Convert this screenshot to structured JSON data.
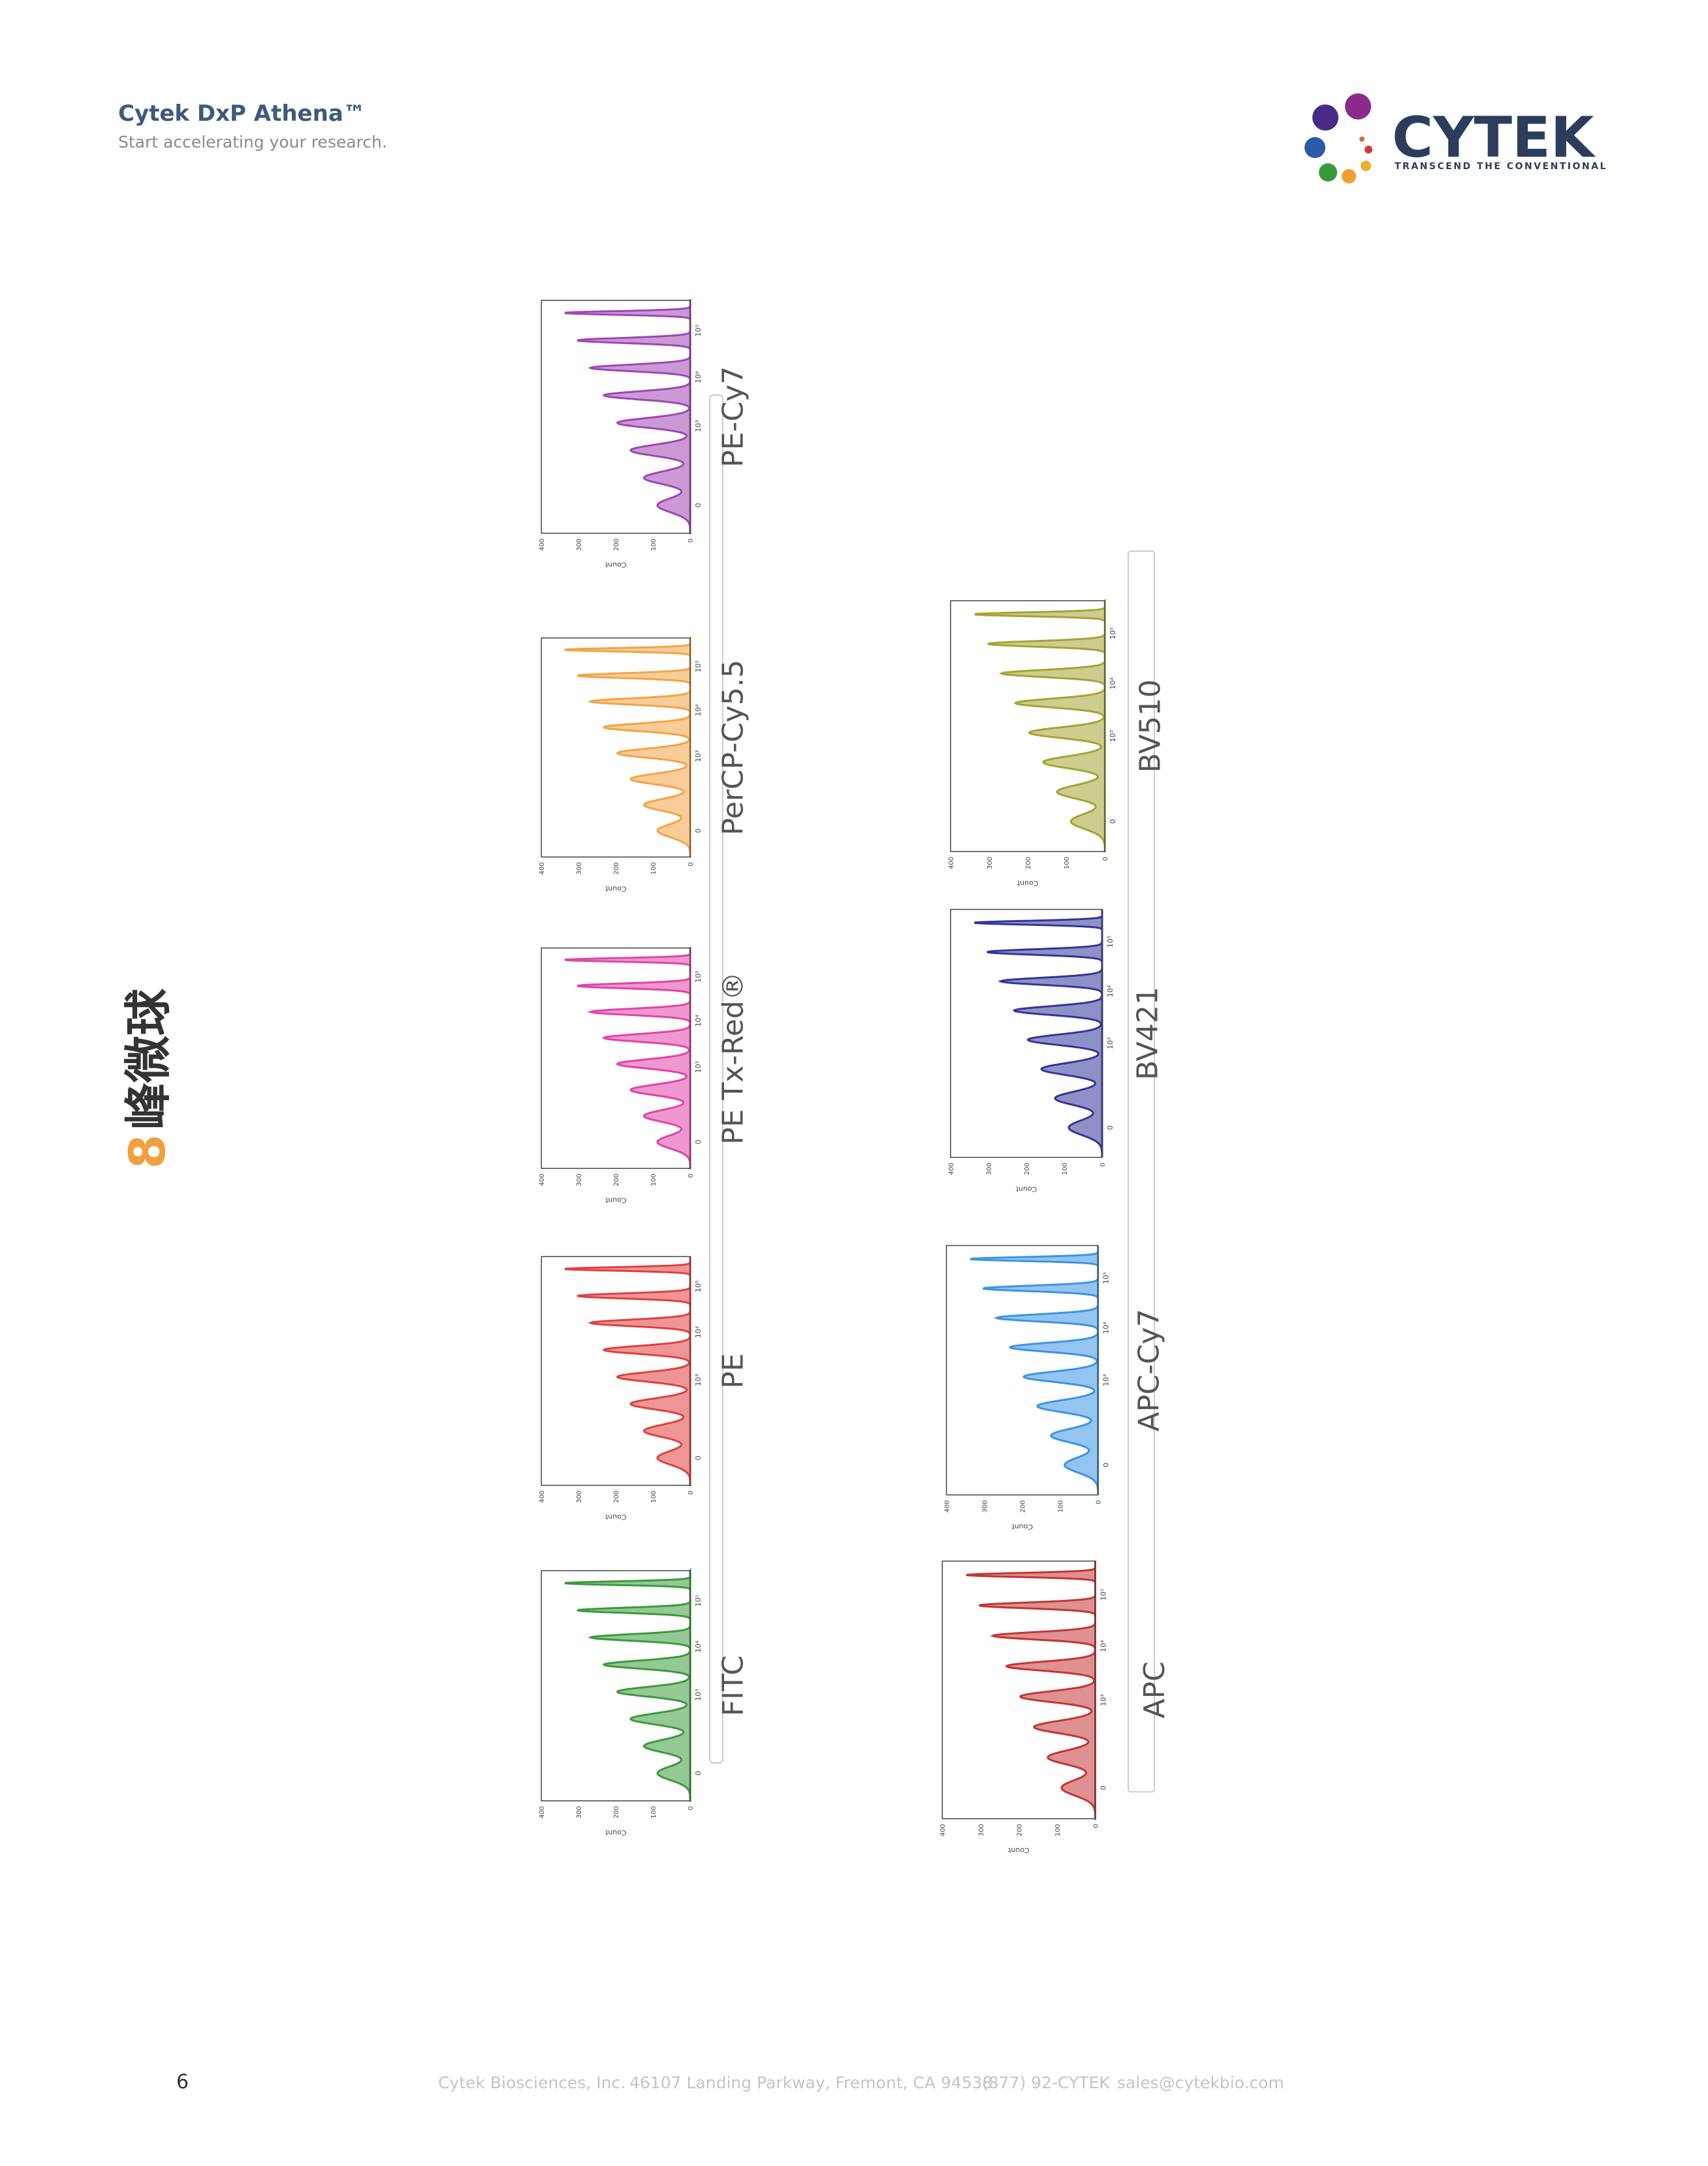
{
  "header": {
    "title": "Cytek DxP Athena™",
    "subtitle": "Start accelerating your research."
  },
  "logo": {
    "name": "CYTEK",
    "tagline": "TRANSCEND THE CONVENTIONAL"
  },
  "section_title": {
    "number": "8",
    "text": "峰微球"
  },
  "axis": {
    "y_label": "Count",
    "y_ticks": [
      "400",
      "300",
      "200",
      "100",
      "0"
    ],
    "x_ticks": [
      "0",
      "10³",
      "10⁴",
      "10⁵"
    ]
  },
  "panels": [
    {
      "label": "FITC",
      "color": "#3c9a3c"
    },
    {
      "label": "PE",
      "color": "#e04040"
    },
    {
      "label": "PE Tx-Red®",
      "color": "#e044a8"
    },
    {
      "label": "PerCP-Cy5.5",
      "color": "#f2a444"
    },
    {
      "label": "PE-Cy7",
      "color": "#a046b4"
    },
    {
      "label": "APC",
      "color": "#c43434"
    },
    {
      "label": "APC-Cy7",
      "color": "#3c94e4"
    },
    {
      "label": "BV421",
      "color": "#34349a"
    },
    {
      "label": "BV510",
      "color": "#a4a434"
    }
  ],
  "footer": {
    "page": "6",
    "company": "Cytek Biosciences, Inc.",
    "address": "46107 Landing Parkway, Fremont, CA 94538",
    "phone": "(877) 92-CYTEK",
    "email": "sales@cytekbio.com"
  }
}
